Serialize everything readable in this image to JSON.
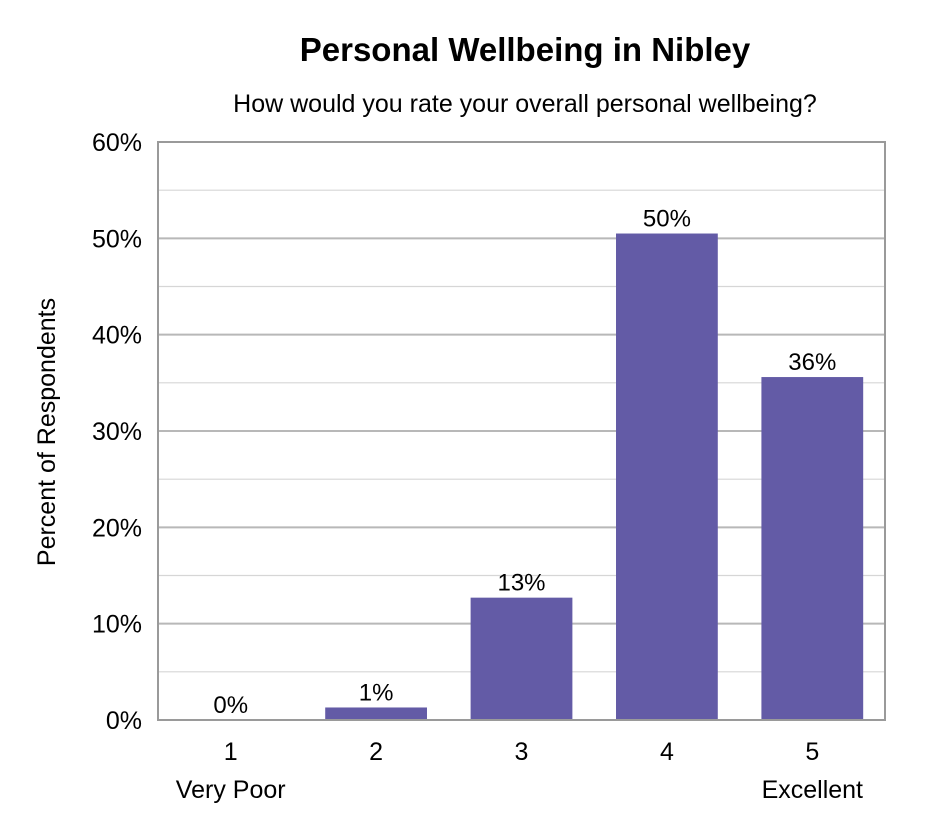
{
  "chart_data": {
    "type": "bar",
    "title": "Personal Wellbeing in Nibley",
    "subtitle": "How would you rate your overall personal wellbeing?",
    "ylabel": "Percent of Respondents",
    "xlabel": "",
    "categories": [
      "1",
      "2",
      "3",
      "4",
      "5"
    ],
    "category_sublabels": [
      "Very Poor",
      "",
      "",
      "",
      "Excellent"
    ],
    "values": [
      0,
      1,
      13,
      50,
      36
    ],
    "data_labels": [
      "0%",
      "1%",
      "13%",
      "50%",
      "36%"
    ],
    "bar_values_precise": [
      0,
      1.3,
      12.7,
      50.5,
      35.6
    ],
    "ylim": [
      0,
      60
    ],
    "yticks": [
      "0%",
      "10%",
      "20%",
      "30%",
      "40%",
      "50%",
      "60%"
    ],
    "grid": true,
    "legend": "none",
    "colors": {
      "bar": "#635ba6",
      "grid": "#b8b8b8",
      "axis": "#9a9a9a"
    }
  }
}
